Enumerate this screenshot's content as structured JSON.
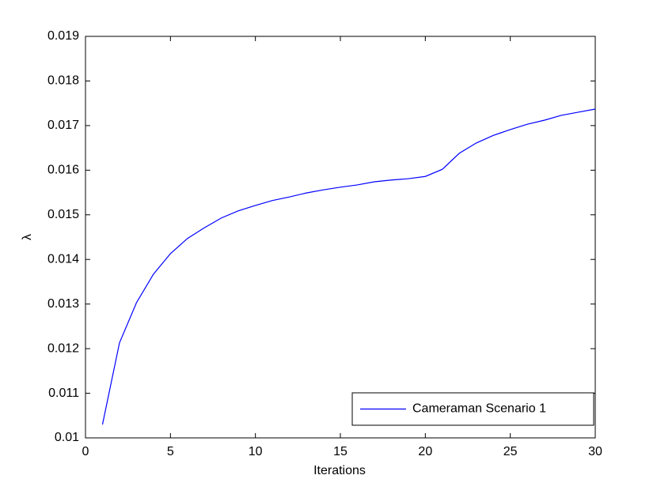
{
  "chart_data": {
    "type": "line",
    "x_label": "Iterations",
    "y_label": "λ",
    "x": [
      1,
      2,
      3,
      4,
      5,
      6,
      7,
      8,
      9,
      10,
      11,
      12,
      13,
      14,
      15,
      16,
      17,
      18,
      19,
      20,
      21,
      22,
      23,
      24,
      25,
      26,
      27,
      28,
      29,
      30
    ],
    "series": [
      {
        "name": "Cameraman Scenario 1",
        "color": "#0000ff",
        "values": [
          0.0103,
          0.01213,
          0.01303,
          0.01367,
          0.01413,
          0.01447,
          0.01471,
          0.01493,
          0.01509,
          0.01521,
          0.01532,
          0.0154,
          0.01549,
          0.01556,
          0.01562,
          0.01567,
          0.01574,
          0.01578,
          0.01581,
          0.01586,
          0.01602,
          0.01638,
          0.01661,
          0.01678,
          0.01691,
          0.01703,
          0.01712,
          0.01723,
          0.0173,
          0.01737
        ]
      }
    ],
    "xlim": [
      0,
      30
    ],
    "xticks": [
      0,
      5,
      10,
      15,
      20,
      25,
      30
    ],
    "ylim": [
      0.01,
      0.019
    ],
    "yticks": [
      0.01,
      0.011,
      0.012,
      0.013,
      0.014,
      0.015,
      0.016,
      0.017,
      0.018,
      0.019
    ],
    "legend": "lower right",
    "grid": false
  }
}
